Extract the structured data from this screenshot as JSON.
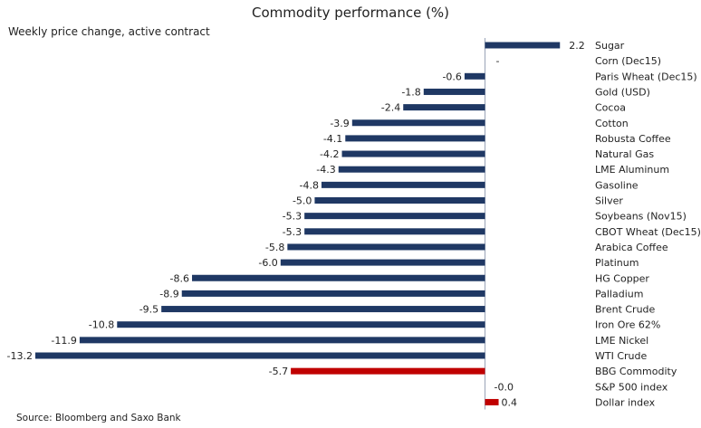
{
  "chart_data": {
    "type": "bar",
    "orientation": "horizontal",
    "title": "Commodity performance (%)",
    "subtitle": "Weekly price change, active contract",
    "source": "Source: Bloomberg and Saxo Bank",
    "categories": [
      "Sugar",
      "Corn (Dec15)",
      "Paris Wheat (Dec15)",
      "Gold (USD)",
      "Cocoa",
      "Cotton",
      "Robusta Coffee",
      "Natural Gas",
      "LME Aluminum",
      "Gasoline",
      "Silver",
      "Soybeans (Nov15)",
      "CBOT Wheat (Dec15)",
      "Arabica Coffee",
      "Platinum",
      "HG Copper",
      "Palladium",
      "Brent Crude",
      "Iron Ore 62%",
      "LME Nickel",
      "WTI Crude",
      "BBG Commodity",
      "S&P 500 index",
      "Dollar index"
    ],
    "values": [
      2.2,
      0.0,
      -0.6,
      -1.8,
      -2.4,
      -3.9,
      -4.1,
      -4.2,
      -4.3,
      -4.8,
      -5.0,
      -5.3,
      -5.3,
      -5.8,
      -6.0,
      -8.6,
      -8.9,
      -9.5,
      -10.8,
      -11.9,
      -13.2,
      -5.7,
      -0.0,
      0.4
    ],
    "labels": [
      "2.2",
      "-",
      "-0.6",
      "-1.8",
      "-2.4",
      "-3.9",
      "-4.1",
      "-4.2",
      "-4.3",
      "-4.8",
      "-5.0",
      "-5.3",
      "-5.3",
      "-5.8",
      "-6.0",
      "-8.6",
      "-8.9",
      "-9.5",
      "-10.8",
      "-11.9",
      "-13.2",
      "-5.7",
      "-0.0",
      "0.4"
    ],
    "bar_colors": [
      "#1f3864",
      "#1f3864",
      "#1f3864",
      "#1f3864",
      "#1f3864",
      "#1f3864",
      "#1f3864",
      "#1f3864",
      "#1f3864",
      "#1f3864",
      "#1f3864",
      "#1f3864",
      "#1f3864",
      "#1f3864",
      "#1f3864",
      "#1f3864",
      "#1f3864",
      "#1f3864",
      "#1f3864",
      "#1f3864",
      "#1f3864",
      "#c00000",
      "#c00000",
      "#c00000"
    ],
    "xlim": [
      -13.2,
      2.2
    ],
    "grid": false,
    "legend": "none"
  }
}
